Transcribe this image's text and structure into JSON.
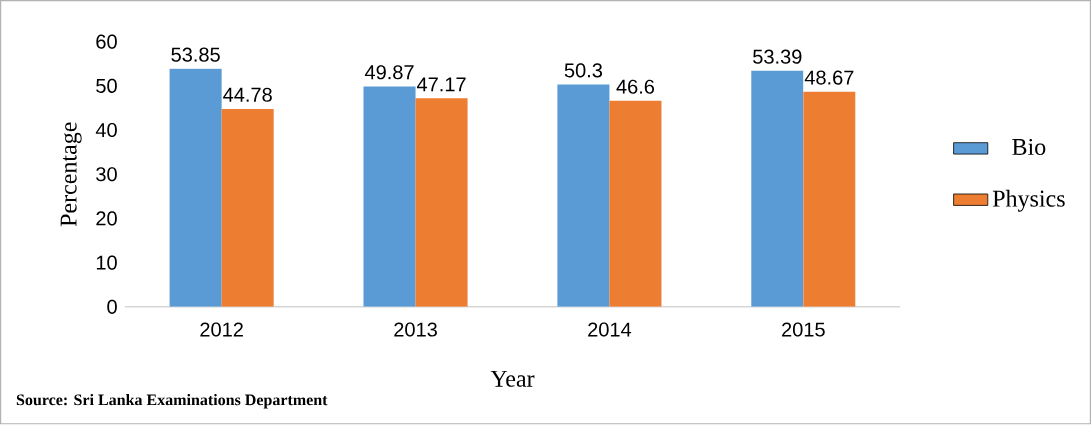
{
  "chart_data": {
    "type": "bar",
    "xlabel": "Year",
    "ylabel": "Percentage",
    "categories": [
      "2012",
      "2013",
      "2014",
      "2015"
    ],
    "series": [
      {
        "name": "Bio",
        "color": "#5b9bd5",
        "values": [
          53.85,
          49.87,
          50.3,
          53.39
        ]
      },
      {
        "name": "Physics",
        "color": "#ed7d31",
        "values": [
          44.78,
          47.17,
          46.6,
          48.67
        ]
      }
    ],
    "ylim": [
      0,
      60
    ],
    "yticks": [
      0,
      10,
      20,
      30,
      40,
      50,
      60
    ],
    "legend": "right",
    "data_labels": true,
    "annotations": [
      "Source: Sri Lanka Examinations Department"
    ]
  }
}
